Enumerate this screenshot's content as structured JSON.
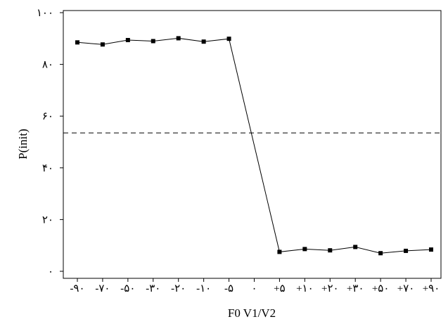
{
  "chart_data": {
    "type": "line",
    "xlabel": "F0 V1/V2",
    "ylabel": "P(init)",
    "ylim": [
      0,
      100
    ],
    "yticks": [
      {
        "value": 0,
        "label": "۰"
      },
      {
        "value": 20,
        "label": "۲۰"
      },
      {
        "value": 40,
        "label": "۴۰"
      },
      {
        "value": 60,
        "label": "۶۰"
      },
      {
        "value": 80,
        "label": "۸۰"
      },
      {
        "value": 100,
        "label": "۱۰۰"
      }
    ],
    "categories": [
      "-۹۰",
      "-۷۰",
      "-۵۰",
      "-۳۰",
      "-۲۰",
      "-۱۰",
      "-۵",
      "۰",
      "+۵",
      "+۱۰",
      "+۲۰",
      "+۳۰",
      "+۵۰",
      "+۷۰",
      "+۹۰"
    ],
    "series": [
      {
        "values": [
          88.5,
          87.7,
          89.4,
          89.0,
          90.1,
          88.8,
          89.9,
          null,
          7.5,
          8.6,
          8.1,
          9.4,
          7.0,
          7.9,
          8.4
        ],
        "color": "#000000",
        "marker": "square"
      }
    ],
    "reference_line": {
      "y": 53.5,
      "style": "dashed",
      "color": "#000000"
    },
    "grid": false,
    "legend": "none"
  }
}
